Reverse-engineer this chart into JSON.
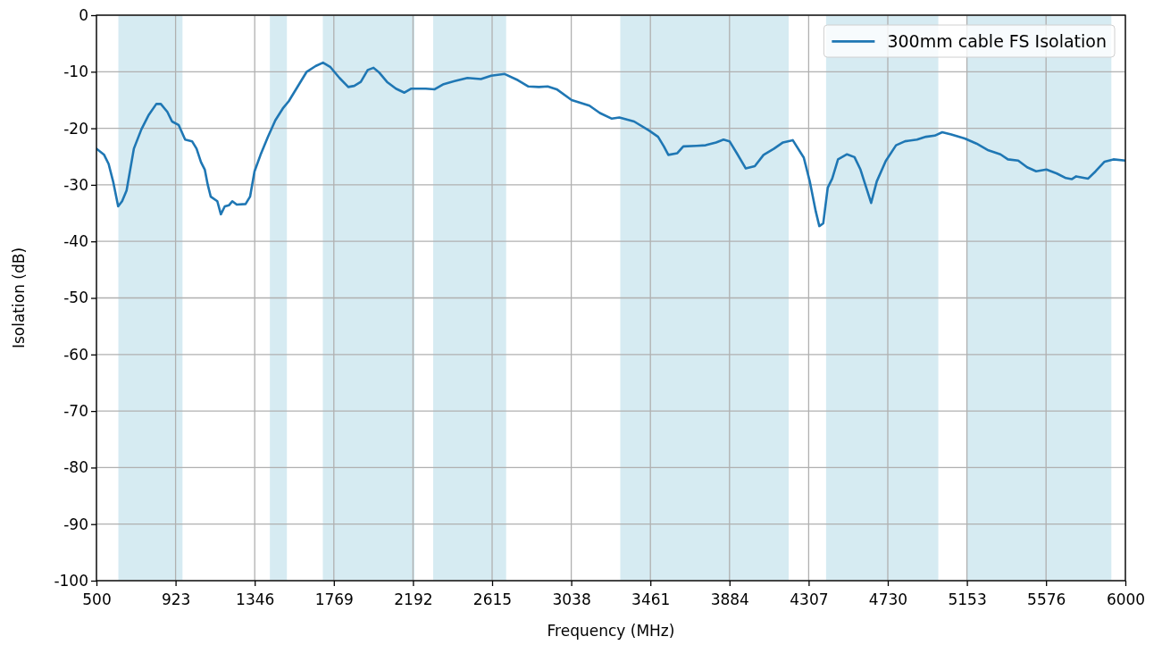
{
  "chart_data": {
    "type": "line",
    "xlabel": "Frequency (MHz)",
    "ylabel": "Isolation (dB)",
    "xlim": [
      500,
      6000
    ],
    "xticks": [
      500,
      923,
      1346,
      1769,
      2192,
      2615,
      3038,
      3461,
      3884,
      4307,
      4730,
      5153,
      5576,
      6000
    ],
    "ylim": [
      -100,
      0
    ],
    "yticks": [
      -100,
      -90,
      -80,
      -70,
      -60,
      -50,
      -40,
      -30,
      -20,
      -10,
      0
    ],
    "grid": true,
    "legend": "top right",
    "bands": [
      {
        "axis": "x",
        "from": 617,
        "to": 960,
        "color": "#d6ebf2"
      },
      {
        "axis": "x",
        "from": 1427,
        "to": 1518,
        "color": "#d6ebf2"
      },
      {
        "axis": "x",
        "from": 1710,
        "to": 2200,
        "color": "#d6ebf2"
      },
      {
        "axis": "x",
        "from": 2300,
        "to": 2690,
        "color": "#d6ebf2"
      },
      {
        "axis": "x",
        "from": 3300,
        "to": 4200,
        "color": "#d6ebf2"
      },
      {
        "axis": "x",
        "from": 4400,
        "to": 5000,
        "color": "#d6ebf2"
      },
      {
        "axis": "x",
        "from": 5150,
        "to": 5925,
        "color": "#d6ebf2"
      }
    ],
    "series": [
      {
        "name": "300mm cable FS Isolation",
        "color": "#1f77b4",
        "x": [
          500,
          541,
          565,
          589,
          616,
          637,
          661,
          700,
          740,
          780,
          820,
          844,
          879,
          904,
          939,
          974,
          1011,
          1035,
          1059,
          1079,
          1095,
          1111,
          1146,
          1165,
          1186,
          1209,
          1226,
          1250,
          1297,
          1321,
          1345,
          1377,
          1417,
          1456,
          1496,
          1528,
          1576,
          1624,
          1671,
          1711,
          1751,
          1799,
          1846,
          1878,
          1913,
          1950,
          1981,
          2013,
          2053,
          2101,
          2146,
          2181,
          2260,
          2308,
          2356,
          2419,
          2483,
          2555,
          2610,
          2682,
          2753,
          2809,
          2865,
          2912,
          2960,
          3040,
          3135,
          3191,
          3255,
          3295,
          3374,
          3454,
          3502,
          3533,
          3557,
          3605,
          3637,
          3708,
          3756,
          3812,
          3852,
          3884,
          3923,
          3971,
          4019,
          4066,
          4122,
          4170,
          4222,
          4281,
          4313,
          4345,
          4364,
          4385,
          4409,
          4433,
          4464,
          4512,
          4552,
          4584,
          4615,
          4641,
          4671,
          4719,
          4774,
          4822,
          4886,
          4934,
          4981,
          5021,
          5069,
          5141,
          5204,
          5268,
          5332,
          5372,
          5427,
          5475,
          5523,
          5578,
          5634,
          5682,
          5713,
          5737,
          5801,
          5841,
          5889,
          5936,
          6000
        ],
        "values": [
          -23.6,
          -24.7,
          -26.3,
          -29.4,
          -33.8,
          -32.9,
          -31.0,
          -23.6,
          -20.2,
          -17.6,
          -15.7,
          -15.7,
          -17.1,
          -18.8,
          -19.4,
          -22.0,
          -22.3,
          -23.6,
          -26.0,
          -27.3,
          -30.0,
          -32.1,
          -32.9,
          -35.2,
          -33.8,
          -33.6,
          -32.9,
          -33.5,
          -33.4,
          -32.1,
          -27.6,
          -24.7,
          -21.5,
          -18.6,
          -16.5,
          -15.2,
          -12.6,
          -10.0,
          -9.0,
          -8.4,
          -9.2,
          -11.1,
          -12.7,
          -12.5,
          -11.8,
          -9.7,
          -9.3,
          -10.2,
          -11.8,
          -13.0,
          -13.7,
          -13.0,
          -13.0,
          -13.1,
          -12.2,
          -11.6,
          -11.1,
          -11.3,
          -10.7,
          -10.4,
          -11.5,
          -12.6,
          -12.7,
          -12.6,
          -13.1,
          -15.0,
          -16.0,
          -17.3,
          -18.3,
          -18.1,
          -18.8,
          -20.4,
          -21.5,
          -23.2,
          -24.7,
          -24.4,
          -23.2,
          -23.1,
          -23.0,
          -22.5,
          -22.0,
          -22.3,
          -24.4,
          -27.1,
          -26.7,
          -24.7,
          -23.6,
          -22.5,
          -22.1,
          -25.2,
          -29.4,
          -34.7,
          -37.3,
          -36.8,
          -30.5,
          -28.9,
          -25.5,
          -24.6,
          -25.1,
          -27.3,
          -30.5,
          -33.2,
          -29.4,
          -25.8,
          -23.0,
          -22.3,
          -22.0,
          -21.5,
          -21.3,
          -20.7,
          -21.1,
          -21.8,
          -22.7,
          -23.9,
          -24.6,
          -25.5,
          -25.7,
          -26.9,
          -27.6,
          -27.3,
          -28.0,
          -28.8,
          -29.0,
          -28.5,
          -28.9,
          -27.6,
          -25.9,
          -25.5,
          -25.7
        ]
      }
    ]
  }
}
